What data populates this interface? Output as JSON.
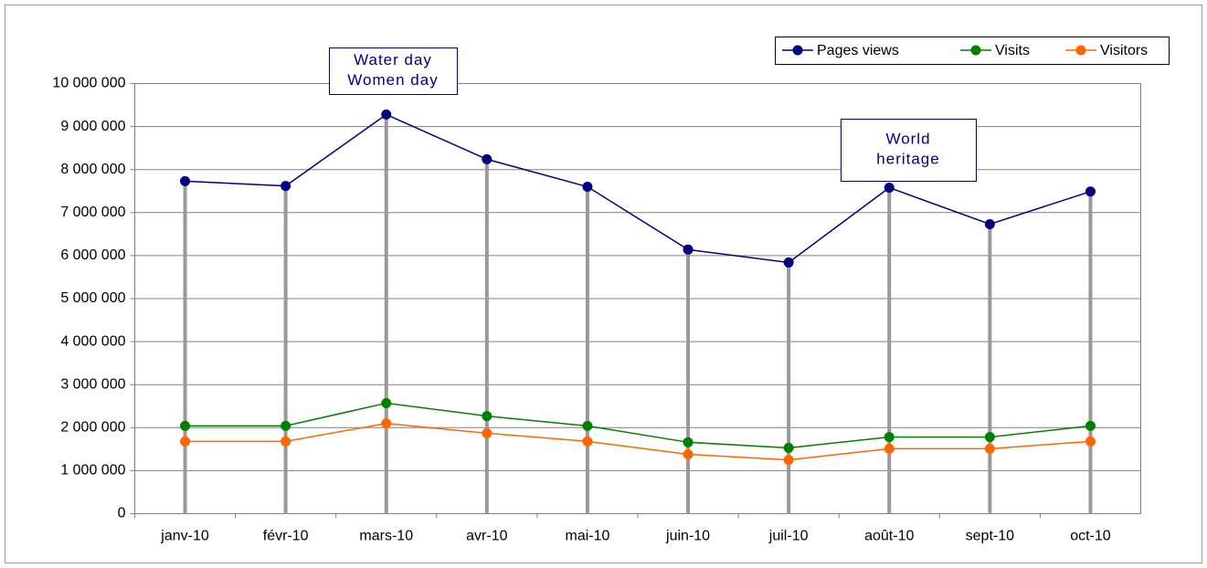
{
  "chart_data": {
    "type": "line",
    "categories": [
      "janv-10",
      "févr-10",
      "mars-10",
      "avr-10",
      "mai-10",
      "juin-10",
      "juil-10",
      "août-10",
      "sept-10",
      "oct-10"
    ],
    "series": [
      {
        "name": "Pages views",
        "color": "#000080",
        "values": [
          7730000,
          7620000,
          9280000,
          8240000,
          7600000,
          6140000,
          5840000,
          7580000,
          6730000,
          7490000
        ]
      },
      {
        "name": "Visits",
        "color": "#008000",
        "values": [
          2040000,
          2040000,
          2570000,
          2270000,
          2040000,
          1660000,
          1530000,
          1780000,
          1780000,
          2040000
        ]
      },
      {
        "name": "Visitors",
        "color": "#ff6600",
        "values": [
          1680000,
          1680000,
          2100000,
          1870000,
          1680000,
          1380000,
          1250000,
          1510000,
          1510000,
          1680000
        ]
      }
    ],
    "ylim": [
      0,
      10000000
    ],
    "yticks": [
      0,
      {
        "value": 1000000,
        "label": "1 000 000"
      },
      {
        "value": 2000000,
        "label": "2 000 000"
      },
      {
        "value": 3000000,
        "label": "3 000 000"
      },
      {
        "value": 4000000,
        "label": "4 000 000"
      },
      {
        "value": 5000000,
        "label": "5 000 000"
      },
      {
        "value": 6000000,
        "label": "6 000 000"
      },
      {
        "value": 7000000,
        "label": "7 000 000"
      },
      {
        "value": 8000000,
        "label": "8 000 000"
      },
      {
        "value": 9000000,
        "label": "9 000 000"
      },
      {
        "value": 10000000,
        "label": "10 000 000"
      }
    ],
    "grid": true,
    "legend": "top-right",
    "annotations": [
      {
        "lines": [
          "Water day",
          "Women day"
        ]
      },
      {
        "lines": [
          "World",
          "heritage"
        ]
      }
    ]
  }
}
